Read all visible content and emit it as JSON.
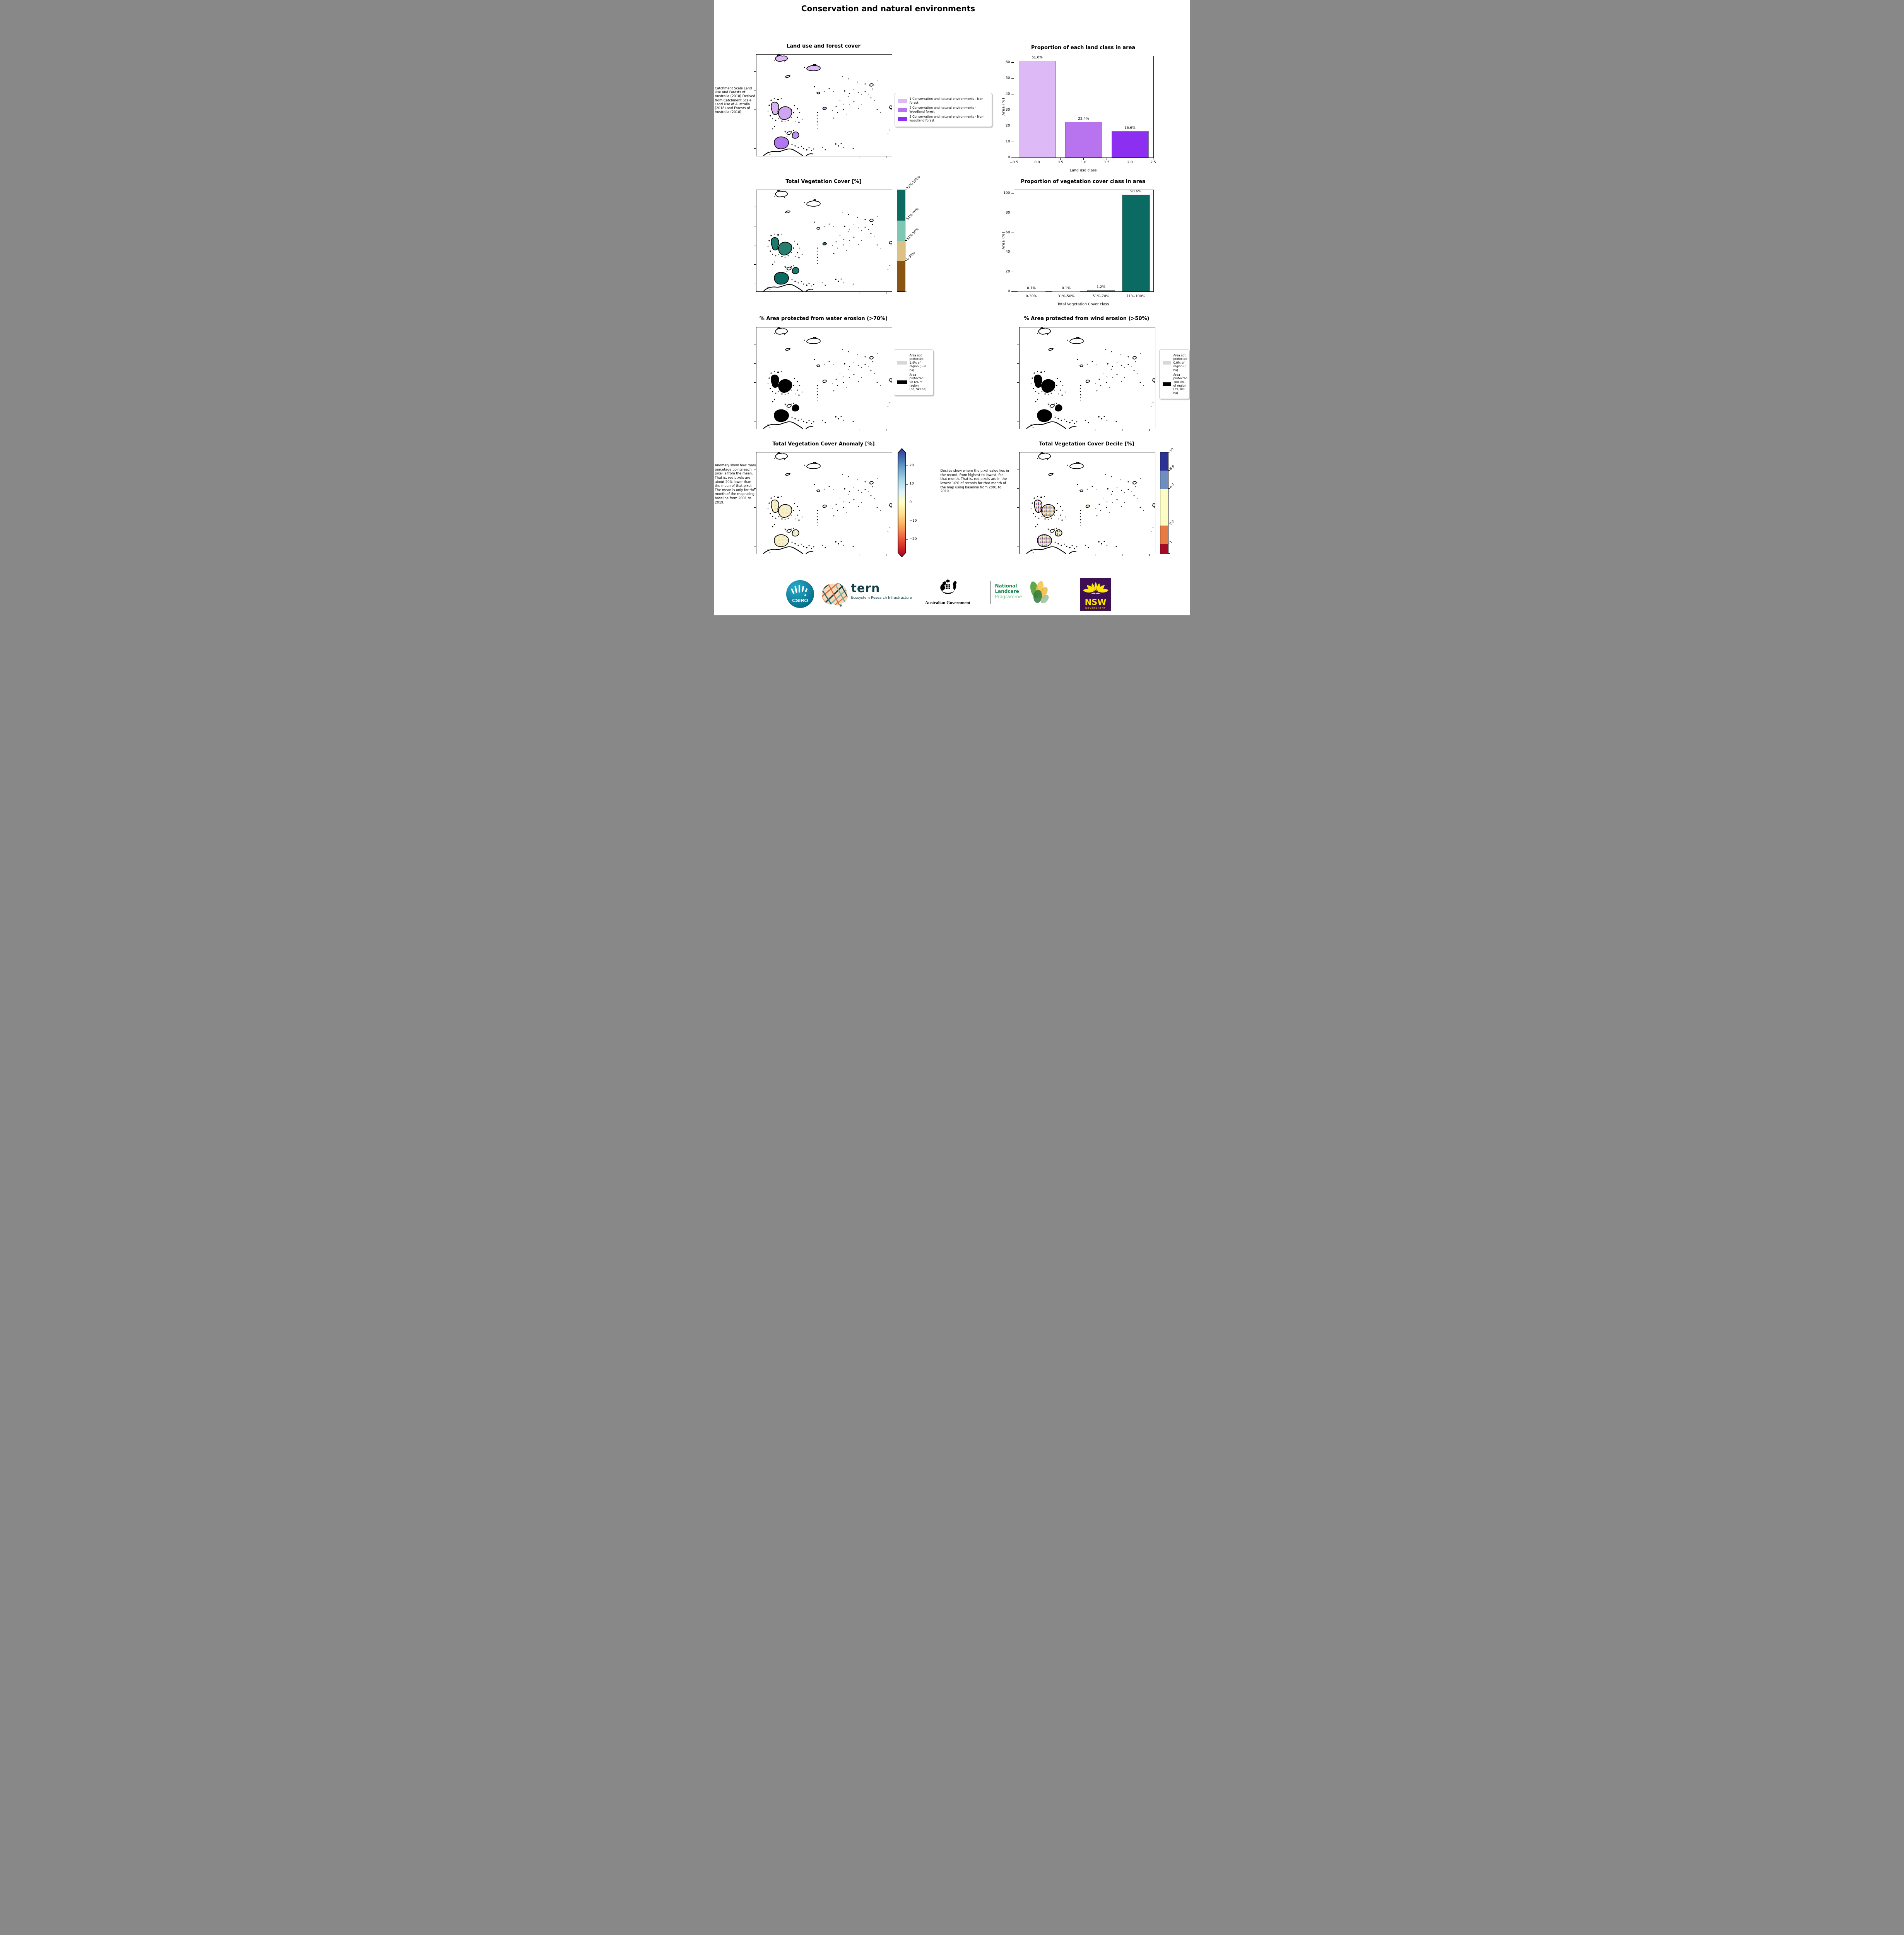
{
  "page_title": "Conservation and natural environments",
  "land_use": {
    "title": "Land use and forest cover",
    "side_note": "Catchment Scale Land Use and Forests of Australia (2018) Derived from Catchment Scale Land Use of Australia (2018) and Forests of Australia (2018)",
    "legend": [
      {
        "label": "1 Conservation and natural environments - Non-forest",
        "color": "#ddb9f6"
      },
      {
        "label": "2 Conservation and natural environments - Woodland forest",
        "color": "#b873ee"
      },
      {
        "label": "3 Conservation and natural environments - Non-woodland forest",
        "color": "#8c2ff0"
      }
    ]
  },
  "vegetation": {
    "title": "Total Vegetation Cover [%]",
    "colorbar": [
      {
        "label": "71%-100%",
        "color": "#0b6a61",
        "frac": 0.3
      },
      {
        "label": "51%-70%",
        "color": "#7fc7b5",
        "frac": 0.2
      },
      {
        "label": "31%-50%",
        "color": "#ddc083",
        "frac": 0.2
      },
      {
        "label": "0-30%",
        "color": "#8a5412",
        "frac": 0.3
      }
    ]
  },
  "water_erosion": {
    "title": "% Area protected from water erosion (>70%)",
    "legend": [
      {
        "label": "Area not protected 1.4% of region (550 ha)",
        "color": "#d8d8d8"
      },
      {
        "label": "Area protected 98.6% of region (38,749 ha)",
        "color": "#000000"
      }
    ]
  },
  "wind_erosion": {
    "title": "% Area protected from wind erosion (>50%)",
    "legend": [
      {
        "label": "Area not protected 0.0% of region (0 ha)",
        "color": "#d8d8d8"
      },
      {
        "label": "Area protected 100.0% of region (39,300 ha)",
        "color": "#000000"
      }
    ]
  },
  "anomaly": {
    "title": "Total Vegetation Cover Anomaly [%]",
    "note": "Anomaly show how many percetage points each pixel is from the mean. That is, red pixels are about 20% lower than the mean of that pixel. The mean is only for the month of the map using baseline from 2001 to 2019.",
    "ticks": [
      "20",
      "10",
      "0",
      "−10",
      "−20"
    ],
    "gradient": [
      "#313695",
      "#4575b4",
      "#74add1",
      "#abd9e9",
      "#e0f3f8",
      "#ffffbf",
      "#fee090",
      "#fdae61",
      "#f46d43",
      "#d73027",
      "#a50026"
    ]
  },
  "decile": {
    "title": "Total Vegetation Cover Decile [%]",
    "note": "Deciles show where the pixel value lies in the record, from highest to lowest, for that month. That is, red pixels are in the lowest 10% of records for that month of the map using baseline from 2001 to 2019.",
    "colorbar": [
      {
        "label": "10",
        "color": "#2c3195",
        "frac": 0.18
      },
      {
        "label": "8-9",
        "color": "#6f8ec0",
        "frac": 0.18
      },
      {
        "label": "4-7",
        "color": "#fdfdc3",
        "frac": 0.36
      },
      {
        "label": "2-3",
        "color": "#e87a44",
        "frac": 0.18
      },
      {
        "label": "1",
        "color": "#a50b26",
        "frac": 0.1
      }
    ]
  },
  "chart_data": [
    {
      "type": "bar",
      "title": "Proportion of each land class in area",
      "xlabel": "Land use class",
      "ylabel": "Area (%)",
      "x": [
        0,
        1,
        2
      ],
      "values": [
        61.0,
        22.4,
        16.6
      ],
      "bar_labels": [
        "61.0%",
        "22.4%",
        "16.6%"
      ],
      "bar_colors": [
        "#ddb9f6",
        "#b873ee",
        "#8c2ff0"
      ],
      "xlim": [
        -0.5,
        2.5
      ],
      "ylim": [
        0,
        64
      ],
      "yticks": [
        0,
        10,
        20,
        30,
        40,
        50,
        60
      ],
      "xticks": [
        -0.5,
        0,
        0.5,
        1,
        1.5,
        2,
        2.5
      ],
      "xtick_labels": [
        "−0.5",
        "0.0",
        "0.5",
        "1.0",
        "1.5",
        "2.0",
        "2.5"
      ],
      "grid": false,
      "legend_position": "none"
    },
    {
      "type": "bar",
      "title": "Proportion of vegetation cover class in area",
      "xlabel": "Total Vegetation Cover class",
      "ylabel": "Area (%)",
      "categories": [
        "0-30%",
        "31%-50%",
        "51%-70%",
        "71%-100%"
      ],
      "values": [
        0.1,
        0.1,
        1.2,
        98.6
      ],
      "bar_labels": [
        "0.1%",
        "0.1%",
        "1.2%",
        "98.6%"
      ],
      "bar_colors": [
        "#8a5412",
        "#ddc083",
        "#80c9b6",
        "#0b6a61"
      ],
      "xlim": [
        -0.5,
        3.5
      ],
      "ylim": [
        0,
        103.5
      ],
      "yticks": [
        0,
        20,
        40,
        60,
        80,
        100
      ],
      "grid": false,
      "legend_position": "none"
    }
  ],
  "map_fills": {
    "land_use": {
      "top": "#ddb9f6",
      "oval": "#ddb9f6",
      "a1": "#d9b2f4",
      "a2": "#cfa5f2",
      "small": "#c18ff0",
      "big": "#b277ef",
      "islet": "#d9b2f4"
    },
    "vegetation": {
      "top": "#ffffff",
      "oval": "#ffffff",
      "a1": "#1b7a6e",
      "a2": "#27806f",
      "small": "#1b7a6e",
      "big": "#0b6a61",
      "islet": "#1b7a6e"
    },
    "water": {
      "top": "#ffffff",
      "oval": "#ffffff",
      "a1": "#000000",
      "a2": "#000000",
      "small": "#000000",
      "big": "#000000",
      "islet": "#ffffff"
    },
    "wind": {
      "top": "#ffffff",
      "oval": "#ffffff",
      "a1": "#000000",
      "a2": "#000000",
      "small": "#000000",
      "big": "#000000",
      "islet": "#ffffff"
    },
    "anomaly": {
      "top": "#ffffff",
      "oval": "#ffffff",
      "a1": "pattern:anom",
      "a2": "pattern:anom",
      "small": "pattern:anom",
      "big": "pattern:anom",
      "islet": "#fdf6d2"
    },
    "decile": {
      "top": "#ffffff",
      "oval": "#ffffff",
      "a1": "pattern:dec",
      "a2": "pattern:dec",
      "small": "pattern:dec",
      "big": "pattern:dec",
      "islet": "#f7f4c0"
    }
  },
  "patterns": {
    "anom": [
      "#fdf6d2",
      "#fbeab6",
      "#f6dca8",
      "#fdf3c8",
      "#e8efdd",
      "#fbe3a5"
    ],
    "dec": [
      "#f7f4c0",
      "#b23a3a",
      "#6279bb",
      "#e8834f",
      "#fdfbda",
      "#8a1f2d",
      "#f0ead0",
      "#d8dfe8"
    ]
  },
  "logos": {
    "csiro": "CSIRO",
    "tern_name": "tern",
    "tern_sub": "Ecosystem Research Infrastructure",
    "aus_gov": "Australian Government",
    "landcare_line1": "National",
    "landcare_line2": "Landcare",
    "landcare_line3": "Programme",
    "nsw_name": "NSW",
    "nsw_sub": "GOVERNMENT"
  }
}
